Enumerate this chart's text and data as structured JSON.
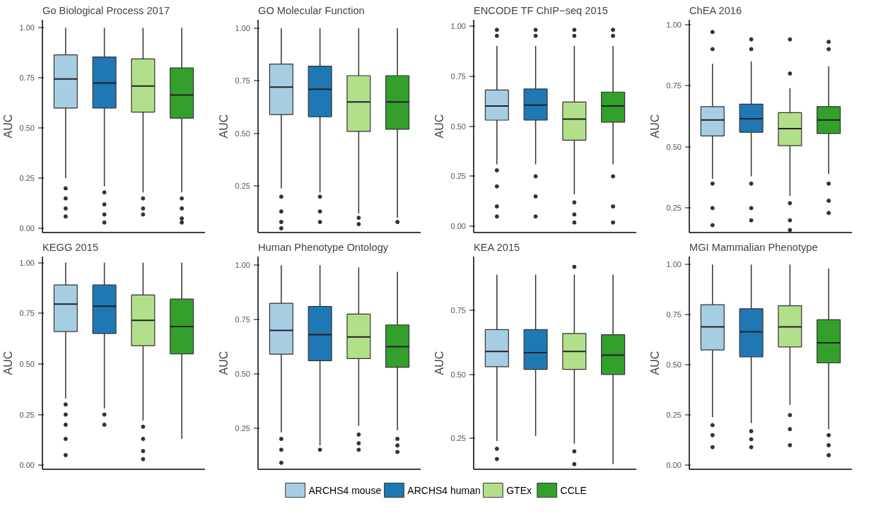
{
  "chart_data": [
    {
      "type": "box",
      "title": "Go Biological Process 2017",
      "ylabel": "AUC",
      "categories": [
        null,
        null,
        null,
        null
      ],
      "ylim": [
        -0.02,
        1.04
      ],
      "yticks": [
        {
          "value": 0,
          "label": "0.00"
        },
        {
          "value": 0.25,
          "label": "0.25"
        },
        {
          "value": 0.5,
          "label": "0.50"
        },
        {
          "value": 0.75,
          "label": "0.75"
        },
        {
          "value": 1,
          "label": "1.00"
        }
      ],
      "tick_labels": "y",
      "legend": "bottom",
      "series": [
        {
          "name": "ARCHS4 mouse",
          "color": "#a6cee3",
          "boxes": [
            {
              "low": 0.25,
              "q1": 0.6,
              "median": 0.745,
              "q3": 0.865,
              "high": 1.0,
              "outliers": [
                0.2,
                0.15,
                0.1,
                0.06
              ]
            },
            null,
            null,
            null
          ]
        },
        {
          "name": "ARCHS4 human",
          "color": "#1f78b4",
          "boxes": [
            null,
            {
              "low": 0.21,
              "q1": 0.6,
              "median": 0.725,
              "q3": 0.855,
              "high": 1.0,
              "outliers": [
                0.18,
                0.12,
                0.07,
                0.03
              ]
            },
            null,
            null
          ]
        },
        {
          "name": "GTEx",
          "color": "#b2df8a",
          "boxes": [
            null,
            null,
            {
              "low": 0.18,
              "q1": 0.58,
              "median": 0.71,
              "q3": 0.845,
              "high": 1.0,
              "outliers": [
                0.15,
                0.1,
                0.07
              ]
            },
            null
          ]
        },
        {
          "name": "CCLE",
          "color": "#33a02c",
          "boxes": [
            null,
            null,
            null,
            {
              "low": 0.18,
              "q1": 0.55,
              "median": 0.665,
              "q3": 0.8,
              "high": 1.0,
              "outliers": [
                0.15,
                0.1,
                0.05,
                0.03
              ]
            }
          ]
        }
      ]
    },
    {
      "type": "box",
      "title": "GO Molecular Function",
      "ylabel": "AUC",
      "categories": [
        null,
        null,
        null,
        null
      ],
      "ylim": [
        0.03,
        1.04
      ],
      "yticks": [
        {
          "value": 0.25,
          "label": "0.25"
        },
        {
          "value": 0.5,
          "label": "0.50"
        },
        {
          "value": 0.75,
          "label": "0.75"
        },
        {
          "value": 1,
          "label": "1.00"
        }
      ],
      "tick_labels": "y",
      "series": [
        {
          "name": "ARCHS4 mouse",
          "color": "#a6cee3",
          "boxes": [
            {
              "low": 0.24,
              "q1": 0.59,
              "median": 0.72,
              "q3": 0.83,
              "high": 1.0,
              "outliers": [
                0.2,
                0.13,
                0.08,
                0.05
              ]
            },
            null,
            null,
            null
          ]
        },
        {
          "name": "ARCHS4 human",
          "color": "#1f78b4",
          "boxes": [
            null,
            {
              "low": 0.22,
              "q1": 0.58,
              "median": 0.71,
              "q3": 0.82,
              "high": 1.0,
              "outliers": [
                0.2,
                0.13,
                0.08
              ]
            },
            null,
            null
          ]
        },
        {
          "name": "GTEx",
          "color": "#b2df8a",
          "boxes": [
            null,
            null,
            {
              "low": 0.12,
              "q1": 0.51,
              "median": 0.65,
              "q3": 0.775,
              "high": 1.0,
              "outliers": [
                0.1,
                0.07
              ]
            },
            null
          ]
        },
        {
          "name": "CCLE",
          "color": "#33a02c",
          "boxes": [
            null,
            null,
            null,
            {
              "low": 0.1,
              "q1": 0.52,
              "median": 0.65,
              "q3": 0.775,
              "high": 1.0,
              "outliers": [
                0.08
              ]
            }
          ]
        }
      ]
    },
    {
      "type": "box",
      "title": "ENCODE TF ChIP−seq 2015",
      "ylabel": "AUC",
      "categories": [
        null,
        null,
        null,
        null
      ],
      "ylim": [
        -0.03,
        1.03
      ],
      "yticks": [
        {
          "value": 0,
          "label": "0.00"
        },
        {
          "value": 0.25,
          "label": "0.25"
        },
        {
          "value": 0.5,
          "label": "0.50"
        },
        {
          "value": 0.75,
          "label": "0.75"
        },
        {
          "value": 1,
          "label": "1.00"
        }
      ],
      "tick_labels": "y",
      "series": [
        {
          "name": "ARCHS4 mouse",
          "color": "#a6cee3",
          "boxes": [
            {
              "low": 0.31,
              "q1": 0.53,
              "median": 0.6,
              "q3": 0.68,
              "high": 0.9,
              "outliers": [
                0.95,
                0.98,
                0.28,
                0.2,
                0.1,
                0.05
              ]
            },
            null,
            null,
            null
          ]
        },
        {
          "name": "ARCHS4 human",
          "color": "#1f78b4",
          "boxes": [
            null,
            {
              "low": 0.31,
              "q1": 0.53,
              "median": 0.605,
              "q3": 0.685,
              "high": 0.9,
              "outliers": [
                0.95,
                0.98,
                0.25,
                0.15,
                0.05
              ]
            },
            null,
            null
          ]
        },
        {
          "name": "GTEx",
          "color": "#b2df8a",
          "boxes": [
            null,
            null,
            {
              "low": 0.16,
              "q1": 0.43,
              "median": 0.535,
              "q3": 0.62,
              "high": 0.9,
              "outliers": [
                0.95,
                0.98,
                0.12,
                0.06,
                0.02
              ]
            },
            null
          ]
        },
        {
          "name": "CCLE",
          "color": "#33a02c",
          "boxes": [
            null,
            null,
            null,
            {
              "low": 0.31,
              "q1": 0.52,
              "median": 0.6,
              "q3": 0.67,
              "high": 0.9,
              "outliers": [
                0.95,
                0.98,
                0.25,
                0.1,
                0.02
              ]
            }
          ]
        }
      ]
    },
    {
      "type": "box",
      "title": "ChEA 2016",
      "ylabel": "AUC",
      "categories": [
        null,
        null,
        null,
        null
      ],
      "ylim": [
        0.15,
        1.02
      ],
      "yticks": [
        {
          "value": 0.25,
          "label": "0.25"
        },
        {
          "value": 0.5,
          "label": "0.50"
        },
        {
          "value": 0.75,
          "label": "0.75"
        },
        {
          "value": 1,
          "label": "1.00"
        }
      ],
      "tick_labels": "y",
      "series": [
        {
          "name": "ARCHS4 mouse",
          "color": "#a6cee3",
          "boxes": [
            {
              "low": 0.37,
              "q1": 0.545,
              "median": 0.61,
              "q3": 0.665,
              "high": 0.84,
              "outliers": [
                0.9,
                0.97,
                0.35,
                0.25,
                0.18
              ]
            },
            null,
            null,
            null
          ]
        },
        {
          "name": "ARCHS4 human",
          "color": "#1f78b4",
          "boxes": [
            null,
            {
              "low": 0.38,
              "q1": 0.56,
              "median": 0.615,
              "q3": 0.675,
              "high": 0.85,
              "outliers": [
                0.9,
                0.94,
                0.35,
                0.25,
                0.2
              ]
            },
            null,
            null
          ]
        },
        {
          "name": "GTEx",
          "color": "#b2df8a",
          "boxes": [
            null,
            null,
            {
              "low": 0.3,
              "q1": 0.505,
              "median": 0.575,
              "q3": 0.64,
              "high": 0.74,
              "outliers": [
                0.8,
                0.94,
                0.27,
                0.2,
                0.16
              ]
            },
            null
          ]
        },
        {
          "name": "CCLE",
          "color": "#33a02c",
          "boxes": [
            null,
            null,
            null,
            {
              "low": 0.39,
              "q1": 0.555,
              "median": 0.61,
              "q3": 0.665,
              "high": 0.83,
              "outliers": [
                0.9,
                0.93,
                0.35,
                0.28,
                0.23
              ]
            }
          ]
        }
      ]
    },
    {
      "type": "box",
      "title": "KEGG 2015",
      "ylabel": "AUC",
      "categories": [
        null,
        null,
        null,
        null
      ],
      "ylim": [
        -0.02,
        1.03
      ],
      "yticks": [
        {
          "value": 0,
          "label": "0.00"
        },
        {
          "value": 0.25,
          "label": "0.25"
        },
        {
          "value": 0.5,
          "label": "0.50"
        },
        {
          "value": 0.75,
          "label": "0.75"
        },
        {
          "value": 1,
          "label": "1.00"
        }
      ],
      "tick_labels": "y",
      "series": [
        {
          "name": "ARCHS4 mouse",
          "color": "#a6cee3",
          "boxes": [
            {
              "low": 0.33,
              "q1": 0.66,
              "median": 0.795,
              "q3": 0.89,
              "high": 1.0,
              "outliers": [
                0.3,
                0.25,
                0.2,
                0.13,
                0.05
              ]
            },
            null,
            null,
            null
          ]
        },
        {
          "name": "ARCHS4 human",
          "color": "#1f78b4",
          "boxes": [
            null,
            {
              "low": 0.28,
              "q1": 0.65,
              "median": 0.785,
              "q3": 0.89,
              "high": 1.0,
              "outliers": [
                0.25,
                0.2
              ]
            },
            null,
            null
          ]
        },
        {
          "name": "GTEx",
          "color": "#b2df8a",
          "boxes": [
            null,
            null,
            {
              "low": 0.22,
              "q1": 0.59,
              "median": 0.715,
              "q3": 0.84,
              "high": 1.0,
              "outliers": [
                0.19,
                0.13,
                0.07,
                0.03
              ]
            },
            null
          ]
        },
        {
          "name": "CCLE",
          "color": "#33a02c",
          "boxes": [
            null,
            null,
            null,
            {
              "low": 0.13,
              "q1": 0.55,
              "median": 0.685,
              "q3": 0.82,
              "high": 1.0
            }
          ]
        }
      ]
    },
    {
      "type": "box",
      "title": "Human Phenotype Ontology",
      "ylabel": "AUC",
      "categories": [
        null,
        null,
        null,
        null
      ],
      "ylim": [
        0.06,
        1.04
      ],
      "yticks": [
        {
          "value": 0.25,
          "label": "0.25"
        },
        {
          "value": 0.5,
          "label": "0.50"
        },
        {
          "value": 0.75,
          "label": "0.75"
        },
        {
          "value": 1,
          "label": "1.00"
        }
      ],
      "tick_labels": "y",
      "series": [
        {
          "name": "ARCHS4 mouse",
          "color": "#a6cee3",
          "boxes": [
            {
              "low": 0.23,
              "q1": 0.59,
              "median": 0.7,
              "q3": 0.825,
              "high": 1.0,
              "outliers": [
                0.2,
                0.15,
                0.09
              ]
            },
            null,
            null,
            null
          ]
        },
        {
          "name": "ARCHS4 human",
          "color": "#1f78b4",
          "boxes": [
            null,
            {
              "low": 0.17,
              "q1": 0.56,
              "median": 0.68,
              "q3": 0.81,
              "high": 1.0,
              "outliers": [
                0.15
              ]
            },
            null,
            null
          ]
        },
        {
          "name": "GTEx",
          "color": "#b2df8a",
          "boxes": [
            null,
            null,
            {
              "low": 0.26,
              "q1": 0.57,
              "median": 0.67,
              "q3": 0.775,
              "high": 0.99,
              "outliers": [
                0.22,
                0.18,
                0.15
              ]
            },
            null
          ]
        },
        {
          "name": "CCLE",
          "color": "#33a02c",
          "boxes": [
            null,
            null,
            null,
            {
              "low": 0.24,
              "q1": 0.53,
              "median": 0.625,
              "q3": 0.725,
              "high": 0.97,
              "outliers": [
                0.2,
                0.17,
                0.14
              ]
            }
          ]
        }
      ]
    },
    {
      "type": "box",
      "title": "KEA 2015",
      "ylabel": "AUC",
      "categories": [
        null,
        null,
        null,
        null
      ],
      "ylim": [
        0.13,
        0.96
      ],
      "yticks": [
        {
          "value": 0.25,
          "label": "0.25"
        },
        {
          "value": 0.5,
          "label": "0.50"
        },
        {
          "value": 0.75,
          "label": "0.75"
        }
      ],
      "tick_labels": "y",
      "series": [
        {
          "name": "ARCHS4 mouse",
          "color": "#a6cee3",
          "boxes": [
            {
              "low": 0.24,
              "q1": 0.53,
              "median": 0.59,
              "q3": 0.675,
              "high": 0.89,
              "outliers": [
                0.21,
                0.17
              ]
            },
            null,
            null,
            null
          ]
        },
        {
          "name": "ARCHS4 human",
          "color": "#1f78b4",
          "boxes": [
            null,
            {
              "low": 0.26,
              "q1": 0.52,
              "median": 0.585,
              "q3": 0.675,
              "high": 0.89
            },
            null,
            null
          ]
        },
        {
          "name": "GTEx",
          "color": "#b2df8a",
          "boxes": [
            null,
            null,
            {
              "low": 0.23,
              "q1": 0.52,
              "median": 0.59,
              "q3": 0.66,
              "high": 0.89,
              "outliers": [
                0.92,
                0.2,
                0.15
              ]
            },
            null
          ]
        },
        {
          "name": "CCLE",
          "color": "#33a02c",
          "boxes": [
            null,
            null,
            null,
            {
              "low": 0.15,
              "q1": 0.5,
              "median": 0.575,
              "q3": 0.655,
              "high": 0.89
            }
          ]
        }
      ]
    },
    {
      "type": "box",
      "title": "MGI Mammalian Phenotype",
      "ylabel": "AUC",
      "categories": [
        null,
        null,
        null,
        null
      ],
      "ylim": [
        -0.02,
        1.04
      ],
      "yticks": [
        {
          "value": 0,
          "label": "0.00"
        },
        {
          "value": 0.25,
          "label": "0.25"
        },
        {
          "value": 0.5,
          "label": "0.50"
        },
        {
          "value": 0.75,
          "label": "0.75"
        },
        {
          "value": 1,
          "label": "1.00"
        }
      ],
      "tick_labels": "y",
      "series": [
        {
          "name": "ARCHS4 mouse",
          "color": "#a6cee3",
          "boxes": [
            {
              "low": 0.24,
              "q1": 0.575,
              "median": 0.69,
              "q3": 0.8,
              "high": 1.0,
              "outliers": [
                0.2,
                0.15,
                0.09
              ]
            },
            null,
            null,
            null
          ]
        },
        {
          "name": "ARCHS4 human",
          "color": "#1f78b4",
          "boxes": [
            null,
            {
              "low": 0.21,
              "q1": 0.54,
              "median": 0.665,
              "q3": 0.78,
              "high": 1.0,
              "outliers": [
                0.17,
                0.13,
                0.09
              ]
            },
            null,
            null
          ]
        },
        {
          "name": "GTEx",
          "color": "#b2df8a",
          "boxes": [
            null,
            null,
            {
              "low": 0.3,
              "q1": 0.59,
              "median": 0.69,
              "q3": 0.795,
              "high": 1.0,
              "outliers": [
                0.25,
                0.18,
                0.1
              ]
            },
            null
          ]
        },
        {
          "name": "CCLE",
          "color": "#33a02c",
          "boxes": [
            null,
            null,
            null,
            {
              "low": 0.18,
              "q1": 0.51,
              "median": 0.61,
              "q3": 0.725,
              "high": 0.98,
              "outliers": [
                0.15,
                0.1,
                0.05
              ]
            }
          ]
        }
      ]
    }
  ]
}
